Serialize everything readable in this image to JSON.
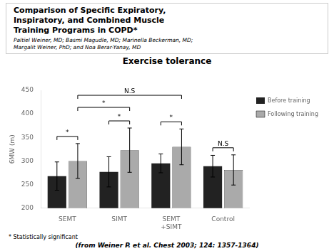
{
  "chart_data": {
    "type": "bar",
    "title": "Comparison of Specific Expiratory,\nInspiratory, and Combined Muscle\nTraining Programs in COPD*",
    "subtitle": "Paltiel Weiner, MD; Basmi Magudle, MD; Marinella Beckerman, MD;\nMargalit Weiner, PhD; and Noa Berar-Yanay, MD",
    "section_title": "Exercise tolerance",
    "footnote": "* Statistically significant",
    "citation": "(from Weiner P. et al.  Chest 2003; 124: 1357-1364)",
    "ylabel": "6MW (m)",
    "categories": [
      "SEMT",
      "SIMT",
      "SEMT\n+SIMT",
      "Control"
    ],
    "series": [
      {
        "name": "Before training",
        "color": "#222222",
        "values": [
          268,
          277,
          295,
          289
        ],
        "errors": [
          30,
          32,
          20,
          23
        ]
      },
      {
        "name": "Following training",
        "color": "#aaaaaa",
        "values": [
          300,
          323,
          330,
          281
        ],
        "errors": [
          37,
          47,
          38,
          32
        ]
      }
    ],
    "ylim": [
      200,
      450
    ],
    "yticks": [
      200,
      250,
      300,
      350,
      400,
      450
    ],
    "grid": false,
    "legend": "right",
    "annotations": {
      "within": [
        "*",
        "*",
        "*",
        "N.S"
      ],
      "between": [
        {
          "text": "*",
          "from": "SEMT",
          "to": "SIMT",
          "series": "Following training"
        },
        {
          "text": "N.S",
          "from": "SEMT",
          "to": "SEMT\n+SIMT",
          "series": "Following training"
        }
      ]
    }
  }
}
